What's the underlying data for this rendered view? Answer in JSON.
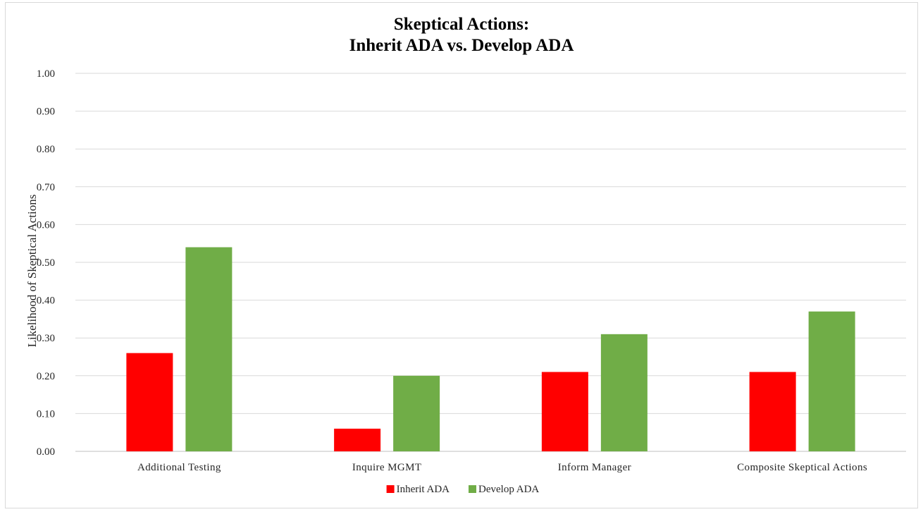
{
  "chart_data": {
    "type": "bar",
    "title": [
      "Skeptical Actions:",
      "Inherit ADA vs. Develop ADA"
    ],
    "xlabel": "",
    "ylabel": "Likelihood of Skeptical Actions",
    "ylim": [
      0,
      1.0
    ],
    "yticks": [
      "0.00",
      "0.10",
      "0.20",
      "0.30",
      "0.40",
      "0.50",
      "0.60",
      "0.70",
      "0.80",
      "0.90",
      "1.00"
    ],
    "grid": true,
    "legend_position": "bottom",
    "categories": [
      "Additional Testing",
      "Inquire MGMT",
      "Inform Manager",
      "Composite Skeptical Actions"
    ],
    "series": [
      {
        "name": "Inherit ADA",
        "color": "#ff0000",
        "values": [
          0.26,
          0.06,
          0.21,
          0.21
        ]
      },
      {
        "name": "Develop ADA",
        "color": "#70ad47",
        "values": [
          0.54,
          0.2,
          0.31,
          0.37
        ]
      }
    ]
  }
}
